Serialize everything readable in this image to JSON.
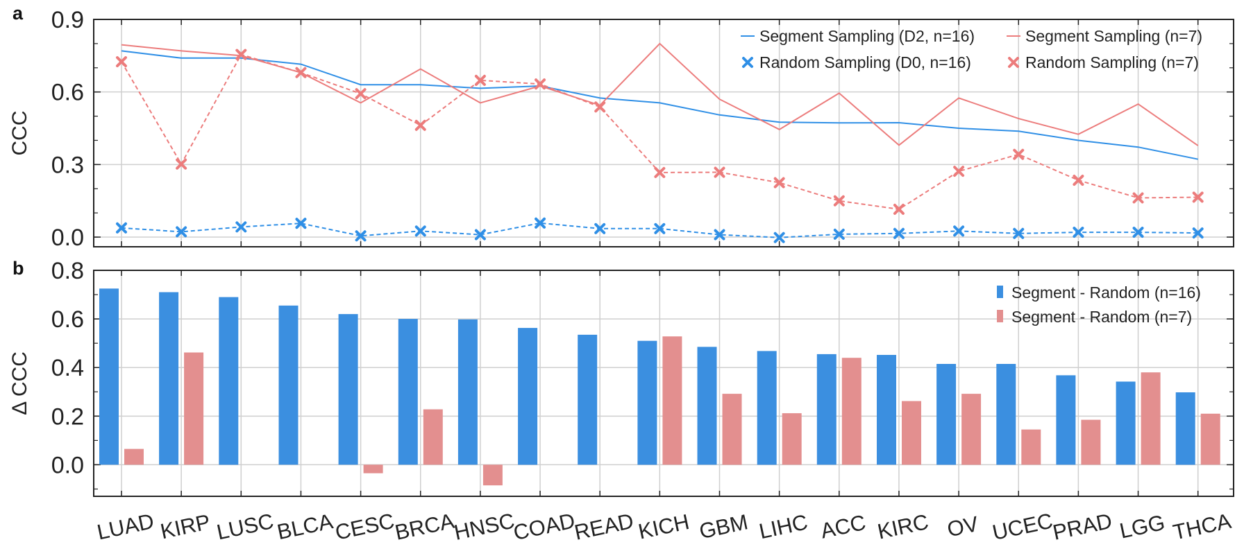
{
  "chart_data": [
    {
      "panel": "a",
      "type": "line",
      "ylabel": "CCC",
      "ylim": [
        -0.04,
        0.9
      ],
      "yticks": [
        "0.0",
        "0.3",
        "0.6",
        "0.9"
      ],
      "grid": true,
      "legend_position": "top-right",
      "categories": [
        "LUAD",
        "KIRP",
        "LUSC",
        "BLCA",
        "CESC",
        "BRCA",
        "HNSC",
        "COAD",
        "READ",
        "KICH",
        "GBM",
        "LIHC",
        "ACC",
        "KIRC",
        "OV",
        "UCEC",
        "PRAD",
        "LGG",
        "THCA"
      ],
      "series": [
        {
          "name": "Segment Sampling (D2, n=16)",
          "style": "solid",
          "marker": "none",
          "color": "#2f8fe6",
          "values": [
            0.77,
            0.74,
            0.74,
            0.715,
            0.63,
            0.63,
            0.615,
            0.625,
            0.575,
            0.555,
            0.505,
            0.475,
            0.472,
            0.473,
            0.45,
            0.438,
            0.4,
            0.372,
            0.322
          ]
        },
        {
          "name": "Random Sampling (D0, n=16)",
          "style": "dashed",
          "marker": "x",
          "color": "#2f8fe6",
          "values": [
            0.038,
            0.022,
            0.042,
            0.057,
            0.005,
            0.025,
            0.01,
            0.058,
            0.035,
            0.035,
            0.01,
            -0.002,
            0.012,
            0.015,
            0.025,
            0.015,
            0.02,
            0.02,
            0.017
          ]
        },
        {
          "name": "Segment Sampling (n=7)",
          "style": "solid",
          "marker": "none",
          "color": "#ec7c7c",
          "values": [
            0.795,
            0.77,
            0.75,
            0.68,
            0.555,
            0.695,
            0.555,
            0.625,
            0.545,
            0.8,
            0.57,
            0.445,
            0.595,
            0.38,
            0.575,
            0.49,
            0.425,
            0.55,
            0.378
          ]
        },
        {
          "name": "Random Sampling (n=7)",
          "style": "dashed",
          "marker": "x",
          "color": "#ec7c7c",
          "values": [
            0.725,
            0.302,
            0.755,
            0.68,
            0.593,
            0.462,
            0.648,
            0.633,
            0.538,
            0.267,
            0.268,
            0.225,
            0.15,
            0.115,
            0.272,
            0.342,
            0.235,
            0.162,
            0.165
          ]
        }
      ]
    },
    {
      "panel": "b",
      "type": "bar",
      "ylabel": "Δ CCC",
      "ylim": [
        -0.13,
        0.8
      ],
      "yticks": [
        "0.0",
        "0.2",
        "0.4",
        "0.6",
        "0.8"
      ],
      "grid": true,
      "legend_position": "top-right",
      "categories": [
        "LUAD",
        "KIRP",
        "LUSC",
        "BLCA",
        "CESC",
        "BRCA",
        "HNSC",
        "COAD",
        "READ",
        "KICH",
        "GBM",
        "LIHC",
        "ACC",
        "KIRC",
        "OV",
        "UCEC",
        "PRAD",
        "LGG",
        "THCA"
      ],
      "series": [
        {
          "name": "Segment - Random (n=16)",
          "color": "#3b8fe0",
          "values": [
            0.725,
            0.71,
            0.69,
            0.655,
            0.62,
            0.6,
            0.598,
            0.563,
            0.535,
            0.51,
            0.485,
            0.468,
            0.455,
            0.452,
            0.415,
            0.415,
            0.368,
            0.342,
            0.298
          ]
        },
        {
          "name": "Segment - Random (n=7)",
          "color": "#e38f8f",
          "values": [
            0.065,
            0.462,
            null,
            null,
            -0.035,
            0.228,
            -0.085,
            null,
            null,
            0.528,
            0.292,
            0.212,
            0.44,
            0.262,
            0.292,
            0.145,
            0.185,
            0.38,
            0.21
          ]
        }
      ]
    }
  ],
  "panel_letters": {
    "a": "a",
    "b": "b"
  }
}
